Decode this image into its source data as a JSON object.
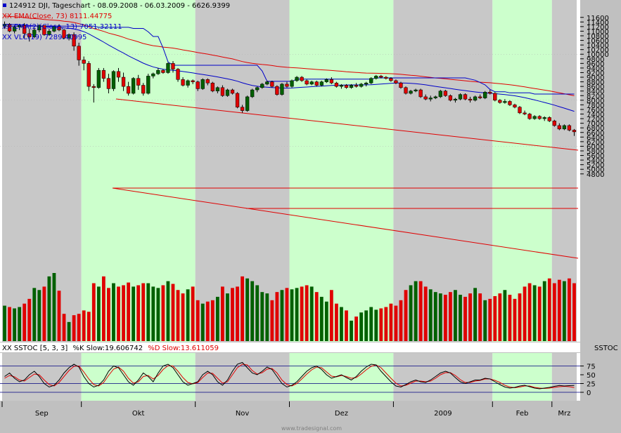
{
  "header": {
    "title": "124912  DJI, Tageschart - 08.09.2008 - 06.03.2009 - 6626.9399",
    "legend": [
      {
        "text": "XX EMA(Close, 73) 8111.44775",
        "color": "#e00000"
      },
      {
        "text": "XX EMA(2)(Close, 13) 7051.32111",
        "color": "#0000c8"
      },
      {
        "text": "XX VLC(19) 7289.40995",
        "color": "#0000c8"
      }
    ]
  },
  "stoch_panel": {
    "legend_prefix": "XX SSTOC [5, 3, 3]",
    "k_label": "%K Slow:19.606742",
    "d_label": "%D Slow:13.611059",
    "axis_tag": "SSTOC"
  },
  "watermark": "www.tradesignal.com",
  "colors": {
    "background": "#ffffff",
    "band_green": "#ccffcc",
    "band_gray": "#c8c8c8",
    "up": "#006000",
    "down": "#e00000",
    "ema_red": "#e00000",
    "line_blue": "#0000c8",
    "stoch_d": "#e00000",
    "stoch_k": "#000000"
  },
  "chart_data": [
    {
      "type": "candlestick",
      "title": "DJI, Tageschart",
      "x_range": [
        "2008-09-08",
        "2009-03-06"
      ],
      "xticks": [
        "Sep",
        "Okt",
        "Nov",
        "Dez",
        "2009",
        "Feb",
        "Mrz"
      ],
      "yticks": [
        4800,
        5000,
        5200,
        5400,
        5600,
        5800,
        6000,
        6200,
        6400,
        6600,
        6800,
        7000,
        7200,
        7400,
        7600,
        7800,
        8000,
        8200,
        8400,
        8600,
        8800,
        9000,
        9200,
        9400,
        9600,
        9800,
        10000,
        10200,
        10400,
        10600,
        10800,
        11000,
        11200,
        11400,
        11600
      ],
      "ylim": [
        4650,
        11800
      ],
      "ohlc": [
        [
          11220,
          11420,
          11100,
          11300
        ],
        [
          11300,
          11350,
          10950,
          11000
        ],
        [
          11000,
          11250,
          10900,
          11180
        ],
        [
          11180,
          11300,
          11050,
          11250
        ],
        [
          11250,
          11350,
          10700,
          10900
        ],
        [
          10900,
          11100,
          10550,
          10750
        ],
        [
          10750,
          11150,
          10700,
          11050
        ],
        [
          11050,
          11300,
          10950,
          11250
        ],
        [
          11250,
          11250,
          10800,
          10850
        ],
        [
          10850,
          11100,
          10800,
          11000
        ],
        [
          11000,
          11250,
          10950,
          11200
        ],
        [
          11200,
          11300,
          11000,
          11050
        ],
        [
          11050,
          11100,
          10650,
          10700
        ],
        [
          10700,
          10900,
          10600,
          10850
        ],
        [
          10850,
          10950,
          10150,
          10350
        ],
        [
          10350,
          10500,
          9500,
          9750
        ],
        [
          9750,
          9900,
          9300,
          9600
        ],
        [
          9600,
          9700,
          8400,
          8600
        ],
        [
          8600,
          8700,
          7900,
          8550
        ],
        [
          8550,
          9400,
          8500,
          9300
        ],
        [
          9300,
          9400,
          8800,
          8950
        ],
        [
          8950,
          9150,
          8300,
          8500
        ],
        [
          8500,
          9300,
          8400,
          9250
        ],
        [
          9250,
          9400,
          8800,
          9000
        ],
        [
          9000,
          9200,
          8400,
          8600
        ],
        [
          8600,
          8800,
          8200,
          8300
        ],
        [
          8300,
          9000,
          8250,
          8950
        ],
        [
          8950,
          9100,
          8450,
          8650
        ],
        [
          8650,
          8750,
          8200,
          8300
        ],
        [
          8300,
          9150,
          8250,
          9050
        ],
        [
          9050,
          9200,
          8950,
          9150
        ],
        [
          9150,
          9400,
          9100,
          9300
        ],
        [
          9300,
          9350,
          9150,
          9200
        ],
        [
          9200,
          9650,
          9150,
          9600
        ],
        [
          9600,
          9700,
          9200,
          9350
        ],
        [
          9350,
          9400,
          8800,
          8900
        ],
        [
          8900,
          9000,
          8600,
          8650
        ],
        [
          8650,
          8900,
          8550,
          8850
        ],
        [
          8850,
          8900,
          8700,
          8800
        ],
        [
          8800,
          8850,
          8400,
          8500
        ],
        [
          8500,
          8950,
          8450,
          8900
        ],
        [
          8900,
          8950,
          8650,
          8750
        ],
        [
          8750,
          8800,
          8350,
          8400
        ],
        [
          8400,
          8600,
          8300,
          8550
        ],
        [
          8550,
          8650,
          8150,
          8200
        ],
        [
          8200,
          8500,
          8150,
          8450
        ],
        [
          8450,
          8500,
          8250,
          8300
        ],
        [
          8300,
          8350,
          7650,
          7700
        ],
        [
          7700,
          7800,
          7450,
          7550
        ],
        [
          7550,
          8200,
          7500,
          8150
        ],
        [
          8150,
          8500,
          8100,
          8450
        ],
        [
          8450,
          8600,
          8350,
          8550
        ],
        [
          8550,
          8750,
          8500,
          8700
        ],
        [
          8700,
          8850,
          8650,
          8800
        ],
        [
          8800,
          8850,
          8550,
          8600
        ],
        [
          8600,
          8650,
          8200,
          8250
        ],
        [
          8250,
          8750,
          8200,
          8700
        ],
        [
          8700,
          8800,
          8550,
          8600
        ],
        [
          8600,
          8900,
          8550,
          8850
        ],
        [
          8850,
          9050,
          8800,
          9000
        ],
        [
          9000,
          9050,
          8800,
          8850
        ],
        [
          8850,
          8900,
          8650,
          8700
        ],
        [
          8700,
          8850,
          8650,
          8800
        ],
        [
          8800,
          8850,
          8600,
          8650
        ],
        [
          8650,
          8850,
          8600,
          8800
        ],
        [
          8800,
          8950,
          8750,
          8900
        ],
        [
          8900,
          9000,
          8700,
          8750
        ],
        [
          8750,
          8800,
          8550,
          8600
        ],
        [
          8600,
          8700,
          8500,
          8650
        ],
        [
          8650,
          8700,
          8500,
          8550
        ],
        [
          8550,
          8700,
          8500,
          8650
        ],
        [
          8650,
          8750,
          8550,
          8600
        ],
        [
          8600,
          8750,
          8550,
          8700
        ],
        [
          8700,
          8800,
          8600,
          8750
        ],
        [
          8750,
          9000,
          8700,
          8950
        ],
        [
          8950,
          9100,
          8900,
          9050
        ],
        [
          9050,
          9100,
          8950,
          9000
        ],
        [
          9000,
          9050,
          8900,
          8950
        ],
        [
          8950,
          9000,
          8800,
          8850
        ],
        [
          8850,
          8900,
          8700,
          8750
        ],
        [
          8750,
          8800,
          8500,
          8550
        ],
        [
          8550,
          8600,
          8250,
          8300
        ],
        [
          8300,
          8450,
          8250,
          8400
        ],
        [
          8400,
          8500,
          8350,
          8450
        ],
        [
          8450,
          8500,
          8100,
          8150
        ],
        [
          8150,
          8250,
          8000,
          8050
        ],
        [
          8050,
          8200,
          7950,
          8100
        ],
        [
          8100,
          8200,
          8050,
          8150
        ],
        [
          8150,
          8450,
          8100,
          8400
        ],
        [
          8400,
          8450,
          8150,
          8200
        ],
        [
          8200,
          8250,
          7950,
          8000
        ],
        [
          8000,
          8100,
          7900,
          8050
        ],
        [
          8050,
          8300,
          8000,
          8250
        ],
        [
          8250,
          8300,
          8000,
          8050
        ],
        [
          8050,
          8150,
          7900,
          8000
        ],
        [
          8000,
          8200,
          7950,
          8150
        ],
        [
          8150,
          8250,
          8050,
          8100
        ],
        [
          8100,
          8400,
          8050,
          8350
        ],
        [
          8350,
          8450,
          8250,
          8300
        ],
        [
          8300,
          8350,
          7950,
          8000
        ],
        [
          8000,
          8050,
          7850,
          7900
        ],
        [
          7900,
          8050,
          7850,
          7950
        ],
        [
          7950,
          8000,
          7750,
          7800
        ],
        [
          7800,
          7850,
          7650,
          7700
        ],
        [
          7700,
          7750,
          7400,
          7450
        ],
        [
          7450,
          7550,
          7350,
          7400
        ],
        [
          7400,
          7450,
          7150,
          7200
        ],
        [
          7200,
          7350,
          7150,
          7300
        ],
        [
          7300,
          7350,
          7150,
          7200
        ],
        [
          7200,
          7300,
          7100,
          7250
        ],
        [
          7250,
          7300,
          7050,
          7100
        ],
        [
          7100,
          7150,
          6850,
          6900
        ],
        [
          6900,
          7000,
          6700,
          6750
        ],
        [
          6750,
          6950,
          6700,
          6900
        ],
        [
          6900,
          6950,
          6650,
          6700
        ],
        [
          6700,
          6750,
          6450,
          6627
        ]
      ],
      "volume_range": [
        0,
        100
      ],
      "volume": [
        52,
        50,
        48,
        50,
        55,
        62,
        78,
        75,
        80,
        95,
        100,
        74,
        40,
        28,
        38,
        40,
        45,
        43,
        85,
        80,
        95,
        78,
        85,
        80,
        82,
        86,
        80,
        82,
        85,
        85,
        80,
        78,
        82,
        88,
        84,
        75,
        70,
        76,
        80,
        60,
        55,
        58,
        60,
        65,
        80,
        70,
        78,
        80,
        95,
        92,
        88,
        82,
        72,
        70,
        60,
        72,
        75,
        78,
        76,
        78,
        80,
        82,
        80,
        72,
        65,
        58,
        75,
        55,
        50,
        45,
        30,
        36,
        42,
        45,
        50,
        46,
        48,
        50,
        55,
        52,
        60,
        75,
        82,
        88,
        88,
        80,
        76,
        72,
        70,
        68,
        72,
        75,
        68,
        65,
        70,
        78,
        70,
        60,
        62,
        66,
        70,
        75,
        68,
        62,
        70,
        80,
        85,
        82,
        80,
        88,
        92,
        85,
        90,
        88,
        92,
        85
      ]
    },
    {
      "type": "line",
      "title": "SSTOC [5, 3, 3]",
      "ylim": [
        0,
        100
      ],
      "yticks": [
        0,
        25,
        50,
        75
      ],
      "series": [
        {
          "name": "%K Slow",
          "last": 19.606742,
          "values": [
            45,
            55,
            40,
            30,
            35,
            50,
            60,
            45,
            25,
            15,
            20,
            35,
            55,
            70,
            80,
            72,
            45,
            25,
            15,
            20,
            35,
            60,
            75,
            70,
            50,
            30,
            20,
            35,
            55,
            45,
            30,
            55,
            75,
            80,
            70,
            50,
            30,
            20,
            25,
            30,
            50,
            60,
            50,
            30,
            20,
            35,
            60,
            80,
            85,
            70,
            55,
            50,
            60,
            72,
            65,
            45,
            25,
            15,
            20,
            30,
            45,
            60,
            70,
            75,
            65,
            50,
            40,
            45,
            50,
            42,
            35,
            45,
            60,
            72,
            80,
            78,
            60,
            45,
            30,
            18,
            15,
            22,
            30,
            35,
            30,
            28,
            35,
            45,
            55,
            60,
            55,
            42,
            30,
            25,
            30,
            35,
            35,
            40,
            38,
            30,
            22,
            15,
            12,
            14,
            18,
            20,
            16,
            12,
            10,
            12,
            14,
            17,
            19.6,
            18,
            19,
            19.6
          ]
        },
        {
          "name": "%D Slow",
          "last": 13.611059,
          "values": [
            40,
            48,
            44,
            35,
            32,
            42,
            52,
            50,
            35,
            22,
            18,
            28,
            45,
            62,
            74,
            75,
            58,
            38,
            22,
            18,
            28,
            48,
            66,
            72,
            60,
            40,
            26,
            30,
            45,
            48,
            38,
            48,
            65,
            76,
            75,
            60,
            42,
            28,
            24,
            28,
            42,
            55,
            54,
            40,
            26,
            30,
            50,
            70,
            80,
            78,
            62,
            52,
            56,
            66,
            68,
            55,
            35,
            22,
            18,
            25,
            38,
            52,
            64,
            72,
            70,
            58,
            46,
            44,
            48,
            45,
            40,
            42,
            52,
            64,
            74,
            78,
            70,
            55,
            40,
            26,
            18,
            20,
            26,
            32,
            32,
            30,
            32,
            40,
            50,
            56,
            56,
            48,
            36,
            28,
            28,
            32,
            34,
            38,
            38,
            34,
            28,
            20,
            15,
            13,
            15,
            18,
            18,
            14,
            12,
            11,
            12,
            14,
            16,
            17,
            16,
            13.6
          ]
        }
      ]
    }
  ]
}
